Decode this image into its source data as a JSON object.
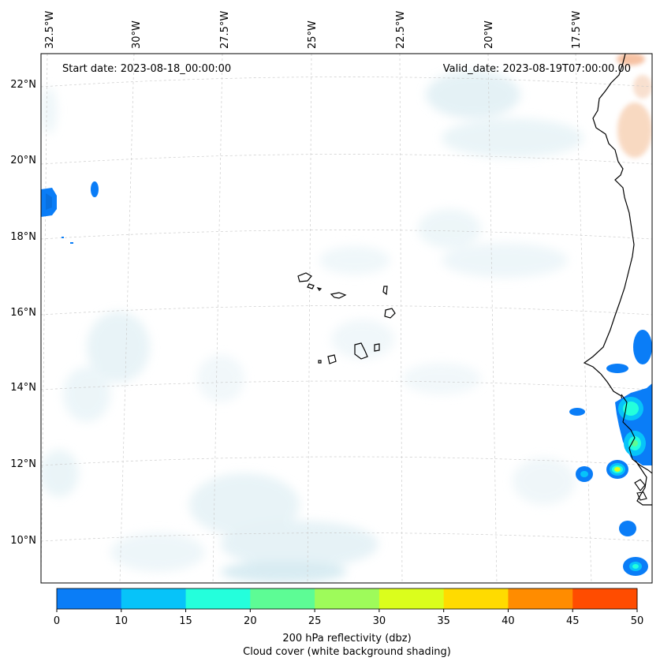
{
  "map": {
    "start_date": "Start date: 2023-08-18_00:00:00",
    "valid_date": "Valid_date: 2023-08-19T07:00:00.00",
    "lon_labels": [
      "32.5°W",
      "30°W",
      "27.5°W",
      "25°W",
      "22.5°W",
      "20°W",
      "17.5°W"
    ],
    "lat_labels": [
      "22°N",
      "20°N",
      "18°N",
      "16°N",
      "14°N",
      "12°N",
      "10°N"
    ],
    "gridlines": "dashed",
    "colors": {
      "coast": "#000000",
      "grid": "#cccccc",
      "cloud": "#dceef4",
      "warm": "#f6c9a8"
    }
  },
  "colorbar": {
    "ticks": [
      "0",
      "10",
      "15",
      "20",
      "25",
      "30",
      "35",
      "40",
      "45",
      "50"
    ],
    "colors": [
      "#0a7df7",
      "#07c3f9",
      "#24ffdc",
      "#5dfc95",
      "#9efb5a",
      "#dbfe1c",
      "#ffdb00",
      "#ff8c00",
      "#ff4c00"
    ],
    "label_line1": "200 hPa reflectivity (dbz)",
    "label_line2": "Cloud cover (white background shading)"
  }
}
